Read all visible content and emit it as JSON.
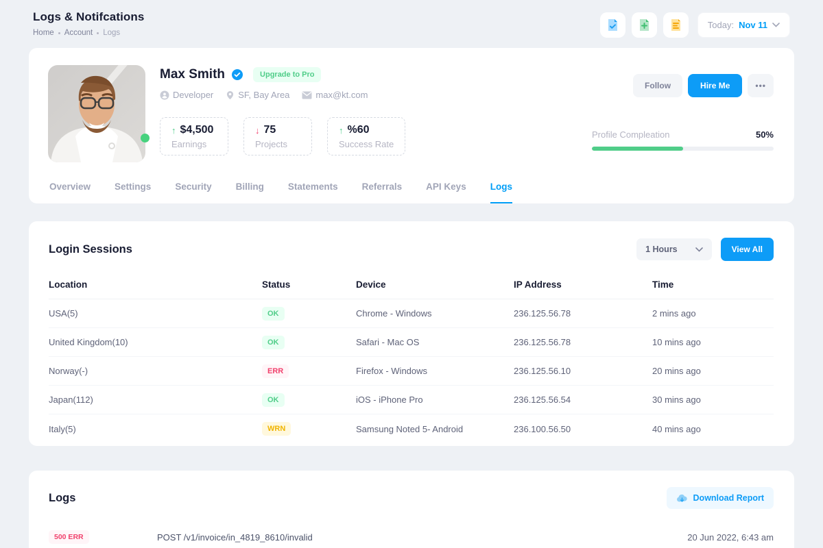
{
  "page": {
    "title": "Logs & Notifcations",
    "breadcrumb": [
      "Home",
      "Account",
      "Logs"
    ],
    "date_label": "Today:",
    "date_value": "Nov 11"
  },
  "toolbar_icons": [
    "file-check-icon",
    "file-plus-icon",
    "file-lines-icon"
  ],
  "profile": {
    "name": "Max Smith",
    "verified_icon": "verified-badge-icon",
    "upgrade_badge": "Upgrade to Pro",
    "meta": {
      "role": "Developer",
      "location": "SF, Bay Area",
      "email": "max@kt.com"
    },
    "stats": [
      {
        "trend": "up",
        "value": "$4,500",
        "label": "Earnings"
      },
      {
        "trend": "down",
        "value": "75",
        "label": "Projects"
      },
      {
        "trend": "up",
        "value": "%60",
        "label": "Success Rate"
      }
    ],
    "actions": {
      "follow": "Follow",
      "hire": "Hire Me",
      "more": "•••"
    },
    "completion": {
      "label": "Profile Compleation",
      "percent_text": "50%",
      "percent": 50
    }
  },
  "tabs": [
    {
      "label": "Overview",
      "active": false
    },
    {
      "label": "Settings",
      "active": false
    },
    {
      "label": "Security",
      "active": false
    },
    {
      "label": "Billing",
      "active": false
    },
    {
      "label": "Statements",
      "active": false
    },
    {
      "label": "Referrals",
      "active": false
    },
    {
      "label": "API Keys",
      "active": false
    },
    {
      "label": "Logs",
      "active": true
    }
  ],
  "sessions": {
    "title": "Login Sessions",
    "filter_value": "1 Hours",
    "view_all_label": "View All",
    "columns": [
      "Location",
      "Status",
      "Device",
      "IP Address",
      "Time"
    ],
    "rows": [
      {
        "location": "USA(5)",
        "status": "OK",
        "status_type": "ok",
        "device": "Chrome - Windows",
        "ip": "236.125.56.78",
        "time": "2 mins ago"
      },
      {
        "location": "United Kingdom(10)",
        "status": "OK",
        "status_type": "ok",
        "device": "Safari - Mac OS",
        "ip": "236.125.56.78",
        "time": "10 mins ago"
      },
      {
        "location": "Norway(-)",
        "status": "ERR",
        "status_type": "err",
        "device": "Firefox - Windows",
        "ip": "236.125.56.10",
        "time": "20 mins ago"
      },
      {
        "location": "Japan(112)",
        "status": "OK",
        "status_type": "ok",
        "device": "iOS - iPhone Pro",
        "ip": "236.125.56.54",
        "time": "30 mins ago"
      },
      {
        "location": "Italy(5)",
        "status": "WRN",
        "status_type": "wrn",
        "device": "Samsung Noted 5- Android",
        "ip": "236.100.56.50",
        "time": "40 mins ago"
      }
    ]
  },
  "logs": {
    "title": "Logs",
    "download_label": "Download Report",
    "rows": [
      {
        "badge": "500 ERR",
        "badge_type": "err",
        "path": "POST /v1/invoice/in_4819_8610/invalid",
        "date": "20 Jun 2022, 6:43 am"
      }
    ]
  },
  "colors": {
    "accent_blue": "#009ef7",
    "success_green": "#50cd89",
    "danger_red": "#f1416c",
    "warning_yellow": "#ffc700",
    "page_background": "#eef1f5"
  }
}
